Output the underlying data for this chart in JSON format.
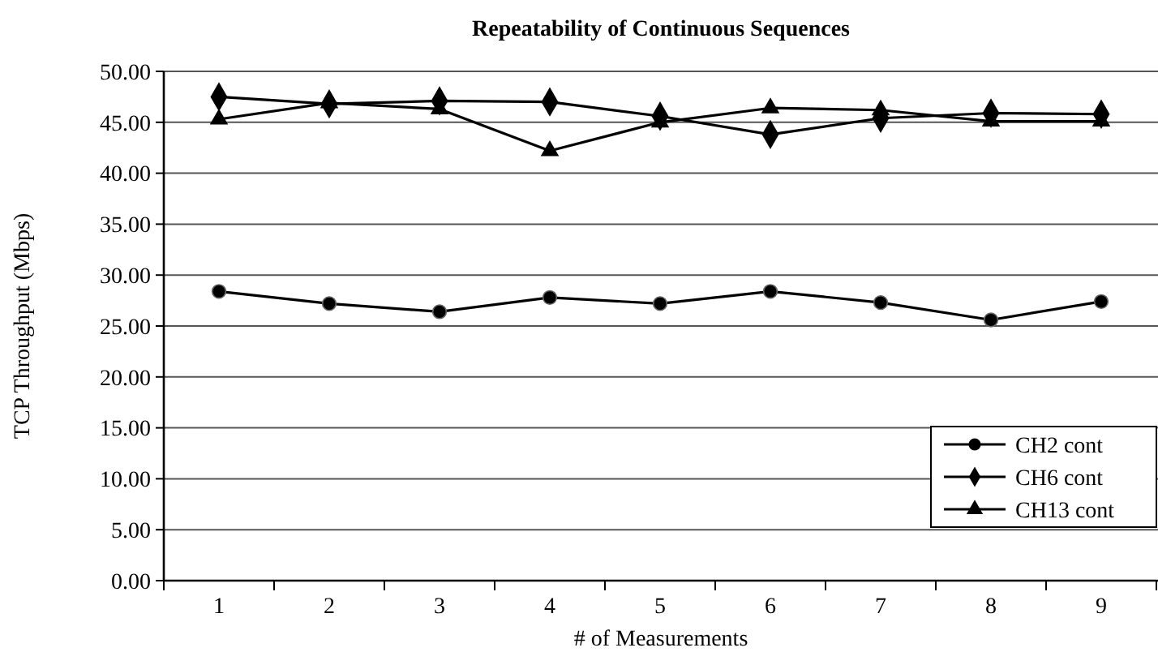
{
  "chart_data": {
    "type": "line",
    "title": "Repeatability of Continuous Sequences",
    "xlabel": "# of Measurements",
    "ylabel": "TCP Throughput (Mbps)",
    "categories": [
      "1",
      "2",
      "3",
      "4",
      "5",
      "6",
      "7",
      "8",
      "9"
    ],
    "series": [
      {
        "name": "CH2 cont",
        "color": "#000000",
        "marker": "circle",
        "values": [
          28.4,
          27.2,
          26.4,
          27.8,
          27.2,
          28.4,
          27.3,
          25.6,
          27.4
        ]
      },
      {
        "name": "CH6 cont",
        "color": "#000000",
        "marker": "diamond",
        "values": [
          47.5,
          46.8,
          47.1,
          47.0,
          45.6,
          43.8,
          45.4,
          45.9,
          45.8
        ]
      },
      {
        "name": "CH13 cont",
        "color": "#000000",
        "marker": "triangle",
        "values": [
          45.3,
          46.9,
          46.3,
          42.2,
          45.0,
          46.4,
          46.2,
          45.1,
          45.1
        ]
      }
    ],
    "ylim": [
      0,
      50
    ],
    "yticks": [
      {
        "value": 0,
        "label": "0.00"
      },
      {
        "value": 5,
        "label": "5.00"
      },
      {
        "value": 10,
        "label": "10.00"
      },
      {
        "value": 15,
        "label": "15.00"
      },
      {
        "value": 20,
        "label": "20.00"
      },
      {
        "value": 25,
        "label": "25.00"
      },
      {
        "value": 30,
        "label": "30.00"
      },
      {
        "value": 35,
        "label": "35.00"
      },
      {
        "value": 40,
        "label": "40.00"
      },
      {
        "value": 45,
        "label": "45.00"
      },
      {
        "value": 50,
        "label": "50.00"
      }
    ],
    "grid": "y",
    "legend": "bottom right",
    "line_style": "solid"
  }
}
